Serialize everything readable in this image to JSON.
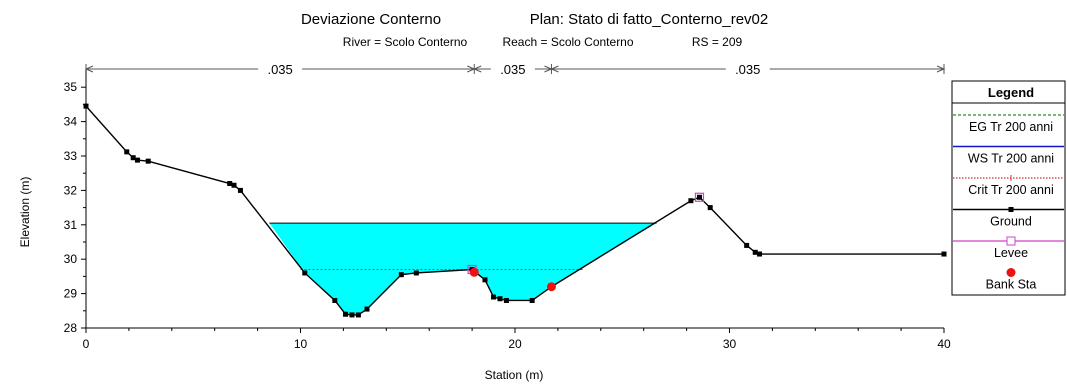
{
  "title": "Deviazione Conterno",
  "plan": "Plan: Stato di fatto_Conterno_rev02",
  "subtitle": {
    "river": "River = Scolo Conterno",
    "reach": "Reach = Scolo Conterno",
    "rs": "RS = 209"
  },
  "chart_data": {
    "type": "line",
    "xlabel": "Station (m)",
    "ylabel": "Elevation (m)",
    "xlim": [
      0,
      40
    ],
    "ylim": [
      28,
      35.5
    ],
    "xticks": [
      0,
      10,
      20,
      30,
      40
    ],
    "yticks": [
      28,
      29,
      30,
      31,
      32,
      33,
      34,
      35
    ],
    "manning": [
      {
        "from": 0,
        "to": 18.1,
        "label": ".035"
      },
      {
        "from": 18.1,
        "to": 21.7,
        "label": ".035"
      },
      {
        "from": 21.7,
        "to": 40,
        "label": ".035"
      }
    ],
    "ground": [
      [
        0,
        34.45
      ],
      [
        1.9,
        33.12
      ],
      [
        2.2,
        32.95
      ],
      [
        2.4,
        32.88
      ],
      [
        2.9,
        32.85
      ],
      [
        6.7,
        32.2
      ],
      [
        6.9,
        32.15
      ],
      [
        7.2,
        32.0
      ],
      [
        10.2,
        29.6
      ],
      [
        11.6,
        28.8
      ],
      [
        12.1,
        28.4
      ],
      [
        12.4,
        28.38
      ],
      [
        12.7,
        28.38
      ],
      [
        13.1,
        28.55
      ],
      [
        14.7,
        29.55
      ],
      [
        15.4,
        29.6
      ],
      [
        18.0,
        29.7
      ],
      [
        18.6,
        29.4
      ],
      [
        19.0,
        28.9
      ],
      [
        19.3,
        28.85
      ],
      [
        19.6,
        28.8
      ],
      [
        20.8,
        28.8
      ],
      [
        21.7,
        29.2
      ],
      [
        28.2,
        31.7
      ],
      [
        28.6,
        31.8
      ],
      [
        29.1,
        31.5
      ],
      [
        30.8,
        30.4
      ],
      [
        31.2,
        30.2
      ],
      [
        31.4,
        30.15
      ],
      [
        40,
        30.15
      ]
    ],
    "water_surface": 31.05,
    "wet_extent": [
      8.55,
      26.6
    ],
    "crit_line": {
      "x": [
        10.0,
        23.2
      ],
      "y": 29.7
    },
    "levees": [
      [
        18.0,
        29.7
      ],
      [
        28.6,
        31.8
      ]
    ],
    "bank_stations": [
      [
        18.1,
        29.62
      ],
      [
        21.7,
        29.2
      ]
    ],
    "legend": {
      "title": "Legend",
      "items": [
        {
          "label": "EG Tr 200 anni",
          "color": "#2e8b2e",
          "style": "dashed"
        },
        {
          "label": "WS Tr 200 anni",
          "color": "#1414c8",
          "style": "solid"
        },
        {
          "label": "Crit Tr 200 anni",
          "color": "#c83232",
          "style": "dotted"
        },
        {
          "label": "Ground",
          "color": "#000000",
          "style": "marker-line"
        },
        {
          "label": "Levee",
          "color": "#cc44cc",
          "style": "open-square"
        },
        {
          "label": "Bank Sta",
          "color": "#ee1111",
          "style": "dot"
        }
      ]
    },
    "colors": {
      "water": "#00ffff",
      "ground": "#000000",
      "ws": "#1414c8",
      "crit": "#c83232",
      "bank": "#ee1111",
      "levee": "#cc44cc"
    }
  }
}
